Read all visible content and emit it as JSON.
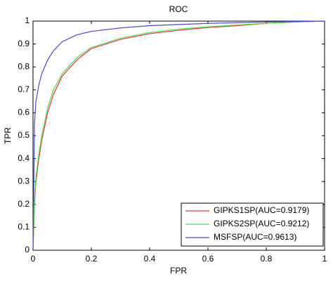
{
  "chart_data": {
    "type": "line",
    "title": "ROC",
    "x_label": "FPR",
    "y_label": "TPR",
    "x": [
      0,
      0.005,
      0.01,
      0.02,
      0.03,
      0.05,
      0.07,
      0.1,
      0.15,
      0.2,
      0.3,
      0.4,
      0.5,
      0.6,
      0.7,
      0.8,
      0.9,
      1
    ],
    "series": [
      {
        "name": "GIPKS1SP(AUC=0.9179)",
        "color": "#e8383d",
        "values": [
          0,
          0.2,
          0.3,
          0.4,
          0.48,
          0.6,
          0.68,
          0.76,
          0.83,
          0.88,
          0.92,
          0.945,
          0.96,
          0.972,
          0.98,
          0.99,
          0.996,
          1
        ]
      },
      {
        "name": "GIPKS2SP(AUC=0.9212)",
        "color": "#4cd94c",
        "values": [
          0,
          0.22,
          0.32,
          0.42,
          0.5,
          0.62,
          0.7,
          0.77,
          0.84,
          0.885,
          0.925,
          0.95,
          0.965,
          0.975,
          0.983,
          0.99,
          0.996,
          1
        ]
      },
      {
        "name": "MSFSP(AUC=0.9613)",
        "color": "#4b4bd0",
        "values": [
          0,
          0.55,
          0.65,
          0.72,
          0.77,
          0.83,
          0.87,
          0.91,
          0.94,
          0.955,
          0.97,
          0.98,
          0.985,
          0.99,
          0.993,
          0.996,
          0.998,
          1
        ]
      }
    ],
    "xlim": [
      0,
      1
    ],
    "ylim": [
      0,
      1
    ],
    "xticks": [
      0,
      0.2,
      0.4,
      0.6,
      0.8,
      1
    ],
    "yticks": [
      0,
      0.1,
      0.2,
      0.3,
      0.4,
      0.5,
      0.6,
      0.7,
      0.8,
      0.9,
      1
    ],
    "grid": false,
    "legend": "lower-right"
  }
}
